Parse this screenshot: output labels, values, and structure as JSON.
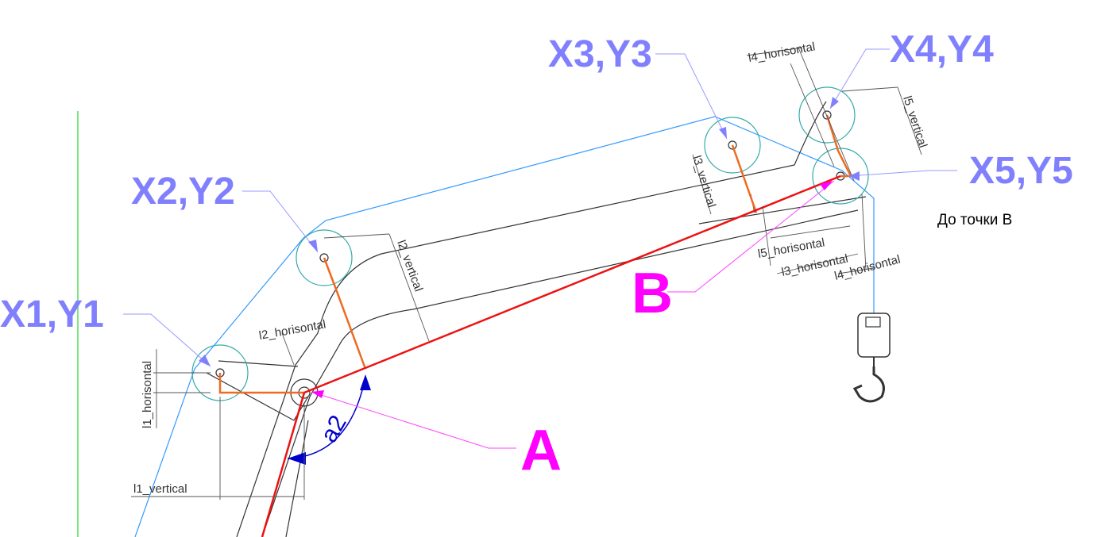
{
  "points": {
    "p1": "X1,Y1",
    "p2": "X2,Y2",
    "p3": "X3,Y3",
    "p4": "X4,Y4",
    "p5": "X5,Y5"
  },
  "markers": {
    "a": "A",
    "b": "B"
  },
  "angle_label": "a2",
  "note": "До точки В",
  "dimensions": {
    "l1_vertical": "l1_vertical",
    "l1_horisontal": "l1_horisontal",
    "l2_horisontal": "l2_horisontal",
    "l2_vertical": "l2_vertical",
    "l3_vertical": "l3_vertical",
    "l3_horisontal": "l3_horisontal",
    "l4_horisontal_top": "l4_horisontal",
    "l4_horisontal_bottom": "l4_horisontal",
    "l5_vertical": "l5_vertical",
    "l5_horisontal": "l5_horisontal"
  },
  "colors": {
    "point_label": "#8080ff",
    "marker_label": "#ff00ff",
    "cable": "#3399ff",
    "pulley": "#33aaaa",
    "link": "#ee6a20",
    "line_ab": "#ee1111",
    "angle": "#0000cc"
  }
}
